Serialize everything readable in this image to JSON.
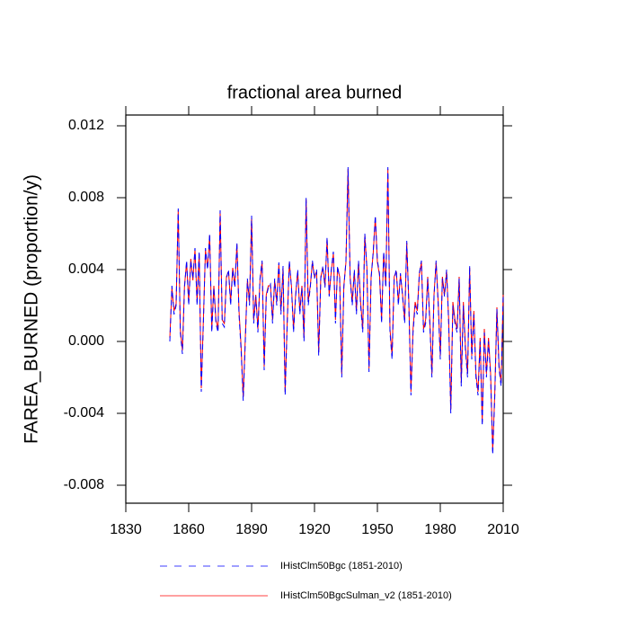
{
  "chart_data": {
    "type": "line",
    "title": "fractional area burned",
    "y_label": "FAREA_BURNED  (proportion/y)",
    "xlim": [
      1830,
      2010
    ],
    "xticks": [
      1830,
      1860,
      1890,
      1920,
      1950,
      1980,
      2010
    ],
    "ylim": [
      -0.009,
      0.0126
    ],
    "yticks": [
      -0.008,
      -0.004,
      {
        "value": 0,
        "label": "0.000"
      },
      0.004,
      0.008,
      0.012
    ],
    "x": [
      1851,
      1852,
      1853,
      1854,
      1855,
      1856,
      1857,
      1858,
      1859,
      1860,
      1861,
      1862,
      1863,
      1864,
      1865,
      1866,
      1867,
      1868,
      1869,
      1870,
      1871,
      1872,
      1873,
      1874,
      1875,
      1876,
      1877,
      1878,
      1879,
      1880,
      1881,
      1882,
      1883,
      1884,
      1885,
      1886,
      1887,
      1888,
      1889,
      1890,
      1891,
      1892,
      1893,
      1894,
      1895,
      1896,
      1897,
      1898,
      1899,
      1900,
      1901,
      1902,
      1903,
      1904,
      1905,
      1906,
      1907,
      1908,
      1909,
      1910,
      1911,
      1912,
      1913,
      1914,
      1915,
      1916,
      1917,
      1918,
      1919,
      1920,
      1921,
      1922,
      1923,
      1924,
      1925,
      1926,
      1927,
      1928,
      1929,
      1930,
      1931,
      1932,
      1933,
      1934,
      1935,
      1936,
      1937,
      1938,
      1939,
      1940,
      1941,
      1942,
      1943,
      1944,
      1945,
      1946,
      1947,
      1948,
      1949,
      1950,
      1951,
      1952,
      1953,
      1954,
      1955,
      1956,
      1957,
      1958,
      1959,
      1960,
      1961,
      1962,
      1963,
      1964,
      1965,
      1966,
      1967,
      1968,
      1969,
      1970,
      1971,
      1972,
      1973,
      1974,
      1975,
      1976,
      1977,
      1978,
      1979,
      1980,
      1981,
      1982,
      1983,
      1984,
      1985,
      1986,
      1987,
      1988,
      1989,
      1990,
      1991,
      1992,
      1993,
      1994,
      1995,
      1996,
      1997,
      1998,
      1999,
      2000,
      2001,
      2002,
      2003,
      2004,
      2005,
      2006,
      2007,
      2008,
      2009,
      2010
    ],
    "series": [
      {
        "name": "IHistClm50Bgc (1851-2010)",
        "color": "#0000ff",
        "dash": true,
        "values": [
          0,
          0.0031,
          0.0015,
          0.002,
          0.0074,
          0.0005,
          -0.0007,
          0.003,
          0.0045,
          0.002,
          0.0045,
          0.0035,
          0.0052,
          0.002,
          0.005,
          -0.0028,
          0.001,
          0.0052,
          0.004,
          0.006,
          0.0005,
          0.003,
          0.001,
          0.0005,
          0.0073,
          0.001,
          0.0008,
          0.0035,
          0.004,
          0.002,
          0.004,
          0.003,
          0.0055,
          0.0015,
          -0.0005,
          -0.0033,
          0,
          0.0035,
          0.002,
          0.007,
          0.001,
          0.0025,
          0.0005,
          0.0035,
          0.0045,
          -0.0016,
          0.0025,
          0.003,
          0.0032,
          0.001,
          0.0035,
          0.002,
          0.0044,
          0.0015,
          0.0042,
          -0.003,
          0.001,
          0.0045,
          0.003,
          0.0005,
          0.0025,
          0.004,
          0.0015,
          0.003,
          0,
          0.008,
          0.002,
          0.003,
          0.0045,
          0.0035,
          0.004,
          -0.0008,
          0.0035,
          0.0042,
          0.003,
          0.0058,
          0.0025,
          0.004,
          0.005,
          0.001,
          0.0042,
          0.0035,
          -0.002,
          0.003,
          0.0045,
          0.0097,
          0.0035,
          0.002,
          0.004,
          0.0015,
          0.0045,
          0.002,
          0.0005,
          0.006,
          0.004,
          -0.0017,
          0.0035,
          0.005,
          0.007,
          0.0045,
          0.0038,
          0.001,
          0.005,
          0.003,
          0.0097,
          0.0005,
          -0.001,
          0.0035,
          0.004,
          0.002,
          0.0038,
          0.0025,
          0.001,
          0.0056,
          0.002,
          -0.003,
          0.0005,
          0.002,
          0.0015,
          0.0038,
          0.0045,
          0.0005,
          0.001,
          0.0035,
          0.001,
          -0.002,
          0.0025,
          0.0045,
          0.002,
          -0.001,
          0.0035,
          0.0025,
          0.004,
          0.001,
          -0.004,
          0.002,
          0.001,
          0.0005,
          0.0035,
          -0.0025,
          0.002,
          -0.0005,
          -0.002,
          0.0042,
          -0.001,
          0.0015,
          -0.002,
          -0.003,
          0,
          -0.0047,
          0.0005,
          -0.002,
          0,
          -0.002,
          -0.0063,
          -0.003,
          0.0018,
          -0.0015,
          -0.0025,
          0.0025
        ]
      },
      {
        "name": "IHistClm50BgcSulman_v2 (1851-2010)",
        "color": "#ff0000",
        "dash": false,
        "values": [
          0.0002,
          0.003,
          0.0017,
          0.0021,
          0.0073,
          0.0007,
          -0.0005,
          0.0031,
          0.0044,
          0.0022,
          0.0046,
          0.0034,
          0.0051,
          0.0022,
          0.0049,
          -0.0026,
          0.0012,
          0.0051,
          0.0041,
          0.0059,
          0.0007,
          0.0031,
          0.0012,
          0.0007,
          0.0072,
          0.0012,
          0.001,
          0.0036,
          0.0039,
          0.0022,
          0.0041,
          0.0031,
          0.0054,
          0.0017,
          -0.0003,
          -0.0031,
          0.0002,
          0.0034,
          0.0022,
          0.0069,
          0.0012,
          0.0026,
          0.0007,
          0.0034,
          0.0044,
          -0.0014,
          0.0026,
          0.0031,
          0.0031,
          0.0012,
          0.0034,
          0.0022,
          0.0043,
          0.0017,
          0.0041,
          -0.0028,
          0.0012,
          0.0044,
          0.0031,
          0.0007,
          0.0026,
          0.0039,
          0.0017,
          0.0031,
          0.0002,
          0.0079,
          0.0022,
          0.0031,
          0.0044,
          0.0036,
          0.0039,
          -0.0006,
          0.0036,
          0.0041,
          0.0031,
          0.0057,
          0.0026,
          0.0039,
          0.0049,
          0.0012,
          0.0041,
          0.0036,
          -0.0018,
          0.0031,
          0.0044,
          0.0096,
          0.0036,
          0.0022,
          0.0039,
          0.0017,
          0.0044,
          0.0022,
          0.0007,
          0.0059,
          0.0041,
          -0.0015,
          0.0036,
          0.0049,
          0.0069,
          0.0044,
          0.0037,
          0.0012,
          0.0049,
          0.0031,
          0.0096,
          0.0007,
          -0.0008,
          0.0036,
          0.0039,
          0.0022,
          0.0037,
          0.0026,
          0.0012,
          0.0055,
          0.0022,
          -0.0028,
          0.0007,
          0.0022,
          0.0017,
          0.0037,
          0.0044,
          0.0007,
          0.0012,
          0.0036,
          0.0012,
          -0.0018,
          0.0026,
          0.0044,
          0.0022,
          -0.0008,
          0.0036,
          0.0026,
          0.0039,
          0.0012,
          -0.0038,
          0.0022,
          0.0012,
          0.0007,
          0.0036,
          -0.0023,
          0.0022,
          -0.0003,
          -0.0018,
          0.0041,
          -0.0008,
          0.0017,
          -0.0018,
          -0.0028,
          0.0002,
          -0.0045,
          0.0007,
          -0.0018,
          0.0002,
          -0.0018,
          -0.0061,
          -0.0028,
          0.0019,
          -0.0013,
          -0.0023,
          0.0026
        ]
      }
    ]
  }
}
